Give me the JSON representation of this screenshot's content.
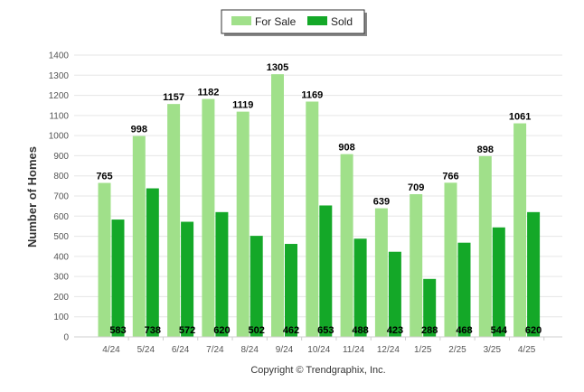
{
  "chart_data": {
    "type": "bar",
    "categories": [
      "4/24",
      "5/24",
      "6/24",
      "7/24",
      "8/24",
      "9/24",
      "10/24",
      "11/24",
      "12/24",
      "1/25",
      "2/25",
      "3/25",
      "4/25"
    ],
    "series": [
      {
        "name": "For Sale",
        "color": "#a0e08a",
        "values": [
          765,
          998,
          1157,
          1182,
          1119,
          1305,
          1169,
          908,
          639,
          709,
          766,
          898,
          1061
        ]
      },
      {
        "name": "Sold",
        "color": "#14a828",
        "values": [
          583,
          738,
          572,
          620,
          502,
          462,
          653,
          488,
          423,
          288,
          468,
          544,
          620
        ]
      }
    ],
    "ylabel": "Number of Homes",
    "ylim": [
      0,
      1400
    ],
    "yticks": [
      0,
      100,
      200,
      300,
      400,
      500,
      600,
      700,
      800,
      900,
      1000,
      1100,
      1200,
      1300,
      1400
    ],
    "grid": true,
    "legend_position": "top-center",
    "footer": "Copyright © Trendgraphix, Inc."
  }
}
